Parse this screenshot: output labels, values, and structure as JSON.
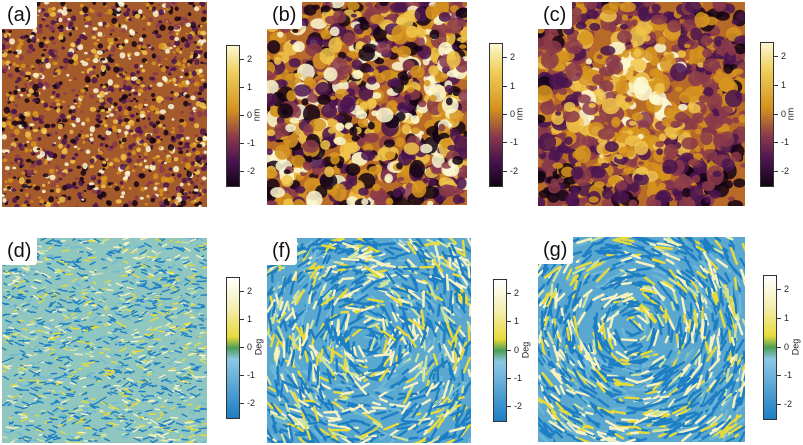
{
  "figure": {
    "panels": [
      {
        "label": "(a)",
        "kind": "height",
        "texture": "fine"
      },
      {
        "label": "(b)",
        "kind": "height",
        "texture": "coarse"
      },
      {
        "label": "(c)",
        "kind": "height",
        "texture": "radial"
      },
      {
        "label": "(d)",
        "kind": "phase",
        "texture": "fine"
      },
      {
        "label": "(f)",
        "kind": "phase",
        "texture": "coarse"
      },
      {
        "label": "(g)",
        "kind": "phase",
        "texture": "radial"
      }
    ],
    "colorbars": [
      {
        "unit": "nm",
        "ticks": [
          "2",
          "1",
          "0",
          "-1",
          "-2"
        ],
        "palette": "afm-height"
      },
      {
        "unit": "nm",
        "ticks": [
          "2",
          "1",
          "0",
          "-1",
          "-2"
        ],
        "palette": "afm-height"
      },
      {
        "unit": "nm",
        "ticks": [
          "2",
          "1",
          "0",
          "-1",
          "-2"
        ],
        "palette": "afm-height"
      },
      {
        "unit": "Deg",
        "ticks": [
          "2",
          "1",
          "0",
          "-1",
          "-2"
        ],
        "palette": "afm-phase"
      },
      {
        "unit": "Deg",
        "ticks": [
          "2",
          "1",
          "0",
          "-1",
          "-2"
        ],
        "palette": "afm-phase"
      },
      {
        "unit": "Deg",
        "ticks": [
          "2",
          "1",
          "0",
          "-1",
          "-2"
        ],
        "palette": "afm-phase"
      }
    ]
  },
  "colors": {
    "height_bright": "#fbf9d2",
    "height_mid": "#d6941e",
    "height_dark": "#140414",
    "phase_top": "#ffffff",
    "phase_yellow": "#e8da3a",
    "phase_zero": "#4b9e56",
    "phase_blue": "#1d7ec4"
  }
}
